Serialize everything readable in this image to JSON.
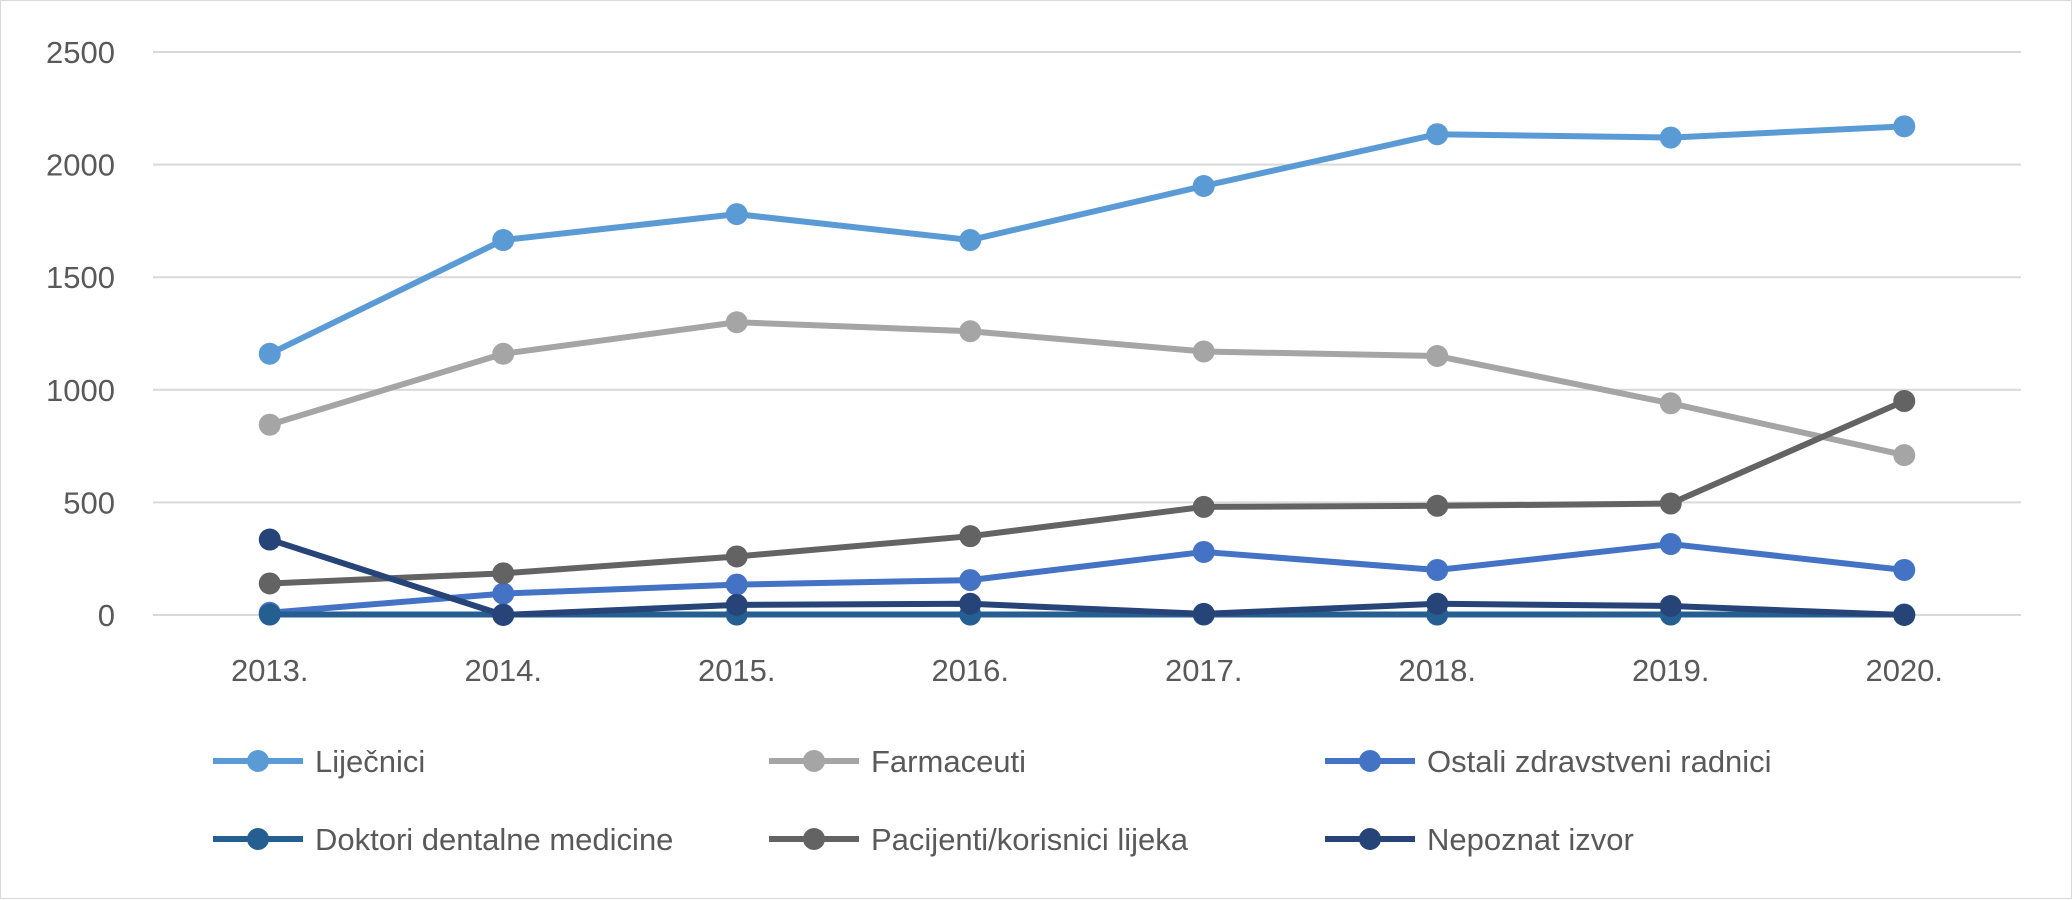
{
  "chart_data": {
    "type": "line",
    "title": "",
    "xlabel": "",
    "ylabel": "",
    "categories": [
      "2013.",
      "2014.",
      "2015.",
      "2016.",
      "2017.",
      "2018.",
      "2019.",
      "2020."
    ],
    "ylim": [
      0,
      2500
    ],
    "yticks": [
      0,
      500,
      1000,
      1500,
      2000,
      2500
    ],
    "grid": "horizontal",
    "legend_position": "bottom",
    "series": [
      {
        "name": "Liječnici",
        "color": "#5B9BD5",
        "values": [
          1160,
          1665,
          1780,
          1665,
          1905,
          2135,
          2120,
          2170
        ]
      },
      {
        "name": "Farmaceuti",
        "color": "#A5A5A5",
        "values": [
          845,
          1160,
          1300,
          1260,
          1170,
          1150,
          940,
          710
        ]
      },
      {
        "name": "Ostali zdravstveni radnici",
        "color": "#4472C4",
        "values": [
          10,
          95,
          135,
          155,
          280,
          200,
          315,
          200
        ]
      },
      {
        "name": "Doktori dentalne medicine",
        "color": "#255E91",
        "values": [
          2,
          2,
          2,
          2,
          2,
          2,
          2,
          2
        ]
      },
      {
        "name": "Pacijenti/korisnici lijeka",
        "color": "#636363",
        "values": [
          140,
          185,
          260,
          350,
          480,
          485,
          495,
          950
        ]
      },
      {
        "name": "Nepoznat izvor",
        "color": "#264478",
        "values": [
          335,
          0,
          45,
          50,
          5,
          50,
          40,
          0
        ]
      }
    ]
  }
}
